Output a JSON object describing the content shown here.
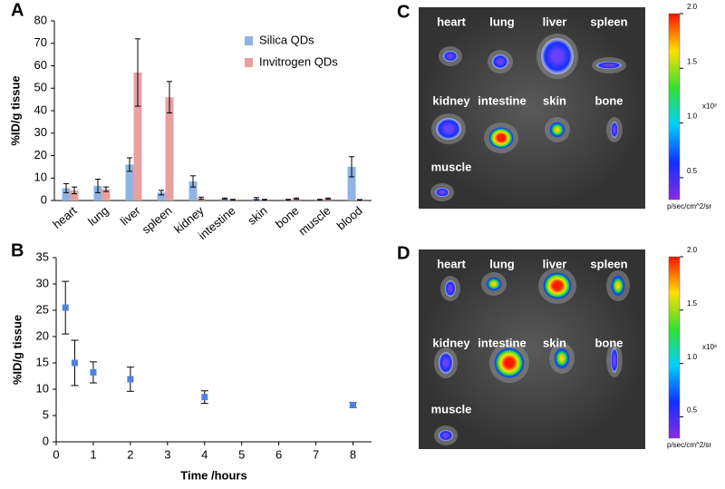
{
  "chart_data": [
    {
      "type": "bar",
      "panel": "A",
      "ylabel": "%ID/g tissue",
      "categories": [
        "heart",
        "lung",
        "liver",
        "spleen",
        "kidney",
        "intestine",
        "skin",
        "bone",
        "muscle",
        "blood"
      ],
      "series": [
        {
          "name": "Silica QDs",
          "color": "#8fb4e3",
          "values": [
            5.5,
            6.5,
            16,
            3.5,
            8.5,
            0.8,
            0.8,
            0.3,
            0.3,
            15
          ],
          "errors": [
            2,
            3,
            3,
            1,
            2.5,
            0.3,
            0.5,
            0.2,
            0.2,
            4.5
          ]
        },
        {
          "name": "Invitrogen QDs",
          "color": "#e8a0a0",
          "values": [
            4.5,
            5,
            57,
            46,
            1,
            0.3,
            0.3,
            0.8,
            0.8,
            0.3
          ],
          "errors": [
            1.5,
            1,
            15,
            7,
            0.5,
            0.2,
            0.2,
            0.3,
            0.3,
            0.1
          ]
        }
      ],
      "ylim": [
        0,
        80
      ],
      "yticks": [
        0,
        10,
        20,
        30,
        40,
        50,
        60,
        70,
        80
      ],
      "legend": "upper right"
    },
    {
      "type": "scatter",
      "panel": "B",
      "xlabel": "Time /hours",
      "ylabel": "%ID/g tissue",
      "color": "#4f81e0",
      "x": [
        0.25,
        0.5,
        1,
        2,
        4,
        8
      ],
      "values": [
        25.5,
        15,
        13.2,
        11.9,
        8.5,
        7
      ],
      "errors": [
        5,
        4.3,
        2,
        2.3,
        1.2,
        0.5
      ],
      "xlim": [
        0,
        8.5
      ],
      "xticks": [
        0,
        1,
        2,
        3,
        4,
        5,
        6,
        7,
        8
      ],
      "ylim": [
        0,
        35
      ],
      "yticks": [
        0,
        5,
        10,
        15,
        20,
        25,
        30,
        35
      ]
    },
    {
      "type": "image",
      "panel": "C",
      "labels": [
        "heart",
        "lung",
        "liver",
        "spleen",
        "kidney",
        "intestine",
        "skin",
        "bone",
        "muscle"
      ],
      "colorbar": {
        "ylim": [
          0.3,
          2.0
        ],
        "yticks": [
          {
            "value": 0.5,
            "label": "0.5"
          },
          {
            "value": 1,
            "label": "1.0"
          },
          {
            "value": 1.5,
            "label": "1.5"
          },
          {
            "value": 2,
            "label": "2.0"
          }
        ],
        "scale_label": "x10⁸",
        "unit": "p/sec/cm^2/sr"
      }
    },
    {
      "type": "image",
      "panel": "D",
      "labels": [
        "heart",
        "lung",
        "liver",
        "spleen",
        "kidney",
        "intestine",
        "skin",
        "bone",
        "muscle"
      ],
      "colorbar": {
        "ylim": [
          0.3,
          2.0
        ],
        "yticks": [
          {
            "value": 0.5,
            "label": "0.5"
          },
          {
            "value": 1,
            "label": "1.0"
          },
          {
            "value": 1.5,
            "label": "1.5"
          },
          {
            "value": 2,
            "label": "2.0"
          }
        ],
        "scale_label": "x10⁸",
        "unit": "p/sec/cm^2/sr"
      }
    }
  ]
}
